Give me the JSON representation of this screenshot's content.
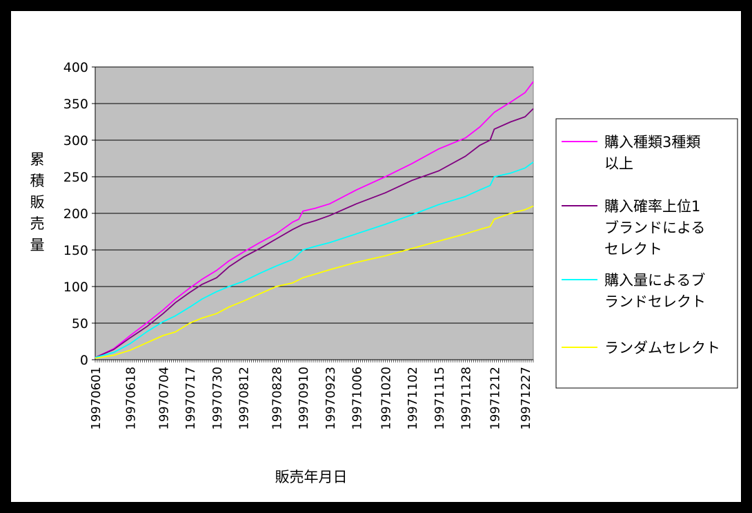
{
  "chart_data": {
    "type": "line",
    "title": "",
    "xlabel": "販売年月日",
    "ylabel": "累積販売量",
    "ylim": [
      0,
      400
    ],
    "y_ticks": [
      0,
      50,
      100,
      150,
      200,
      250,
      300,
      350,
      400
    ],
    "grid": "horizontal",
    "legend_position": "right",
    "plot_background": "#c0c0c0",
    "x_tick_labels": [
      "19970601",
      "19970618",
      "19970704",
      "19970717",
      "19970730",
      "19970812",
      "19970828",
      "19970910",
      "19970923",
      "19971006",
      "19971020",
      "19971102",
      "19971115",
      "19971128",
      "19971212",
      "19971227"
    ],
    "x_tick_dates": [
      "1997-06-01",
      "1997-06-18",
      "1997-07-04",
      "1997-07-17",
      "1997-07-30",
      "1997-08-12",
      "1997-08-28",
      "1997-09-10",
      "1997-09-23",
      "1997-10-06",
      "1997-10-20",
      "1997-11-02",
      "1997-11-15",
      "1997-11-28",
      "1997-12-12",
      "1997-12-27"
    ],
    "x_range": [
      "1997-06-01",
      "1997-12-31"
    ],
    "series": [
      {
        "name": "購入種類3種類以上",
        "legend_lines": [
          "購入種類3種類",
          "以上"
        ],
        "color": "#ff00ff",
        "x": [
          "1997-06-01",
          "1997-06-10",
          "1997-06-18",
          "1997-06-26",
          "1997-07-04",
          "1997-07-10",
          "1997-07-17",
          "1997-07-23",
          "1997-07-30",
          "1997-08-05",
          "1997-08-12",
          "1997-08-20",
          "1997-08-28",
          "1997-09-05",
          "1997-09-08",
          "1997-09-10",
          "1997-09-16",
          "1997-09-23",
          "1997-10-06",
          "1997-10-20",
          "1997-11-02",
          "1997-11-15",
          "1997-11-28",
          "1997-12-05",
          "1997-12-12",
          "1997-12-20",
          "1997-12-27",
          "1997-12-31"
        ],
        "y": [
          3,
          15,
          33,
          50,
          68,
          83,
          98,
          110,
          122,
          135,
          147,
          160,
          172,
          188,
          192,
          203,
          207,
          213,
          232,
          250,
          268,
          288,
          303,
          318,
          338,
          352,
          365,
          380
        ]
      },
      {
        "name": "購入確率上位1ブランドによるセレクト",
        "legend_lines": [
          "購入確率上位1",
          "ブランドによる",
          "セレクト"
        ],
        "color": "#800080",
        "x": [
          "1997-06-01",
          "1997-06-10",
          "1997-06-18",
          "1997-06-26",
          "1997-07-04",
          "1997-07-10",
          "1997-07-17",
          "1997-07-23",
          "1997-07-30",
          "1997-08-05",
          "1997-08-12",
          "1997-08-20",
          "1997-08-28",
          "1997-09-05",
          "1997-09-10",
          "1997-09-16",
          "1997-09-23",
          "1997-10-06",
          "1997-10-20",
          "1997-11-02",
          "1997-11-15",
          "1997-11-28",
          "1997-12-05",
          "1997-12-10",
          "1997-12-12",
          "1997-12-20",
          "1997-12-27",
          "1997-12-31"
        ],
        "y": [
          3,
          14,
          30,
          45,
          63,
          78,
          92,
          103,
          112,
          127,
          140,
          152,
          165,
          178,
          185,
          190,
          197,
          213,
          228,
          245,
          258,
          278,
          293,
          300,
          315,
          325,
          332,
          343
        ]
      },
      {
        "name": "購入量によるブランドセレクト",
        "legend_lines": [
          "購入量によるブ",
          "ランドセレクト"
        ],
        "color": "#00ffff",
        "x": [
          "1997-06-01",
          "1997-06-10",
          "1997-06-18",
          "1997-06-26",
          "1997-07-04",
          "1997-07-10",
          "1997-07-17",
          "1997-07-23",
          "1997-07-30",
          "1997-08-05",
          "1997-08-12",
          "1997-08-20",
          "1997-08-28",
          "1997-09-05",
          "1997-09-10",
          "1997-09-16",
          "1997-09-23",
          "1997-10-06",
          "1997-10-20",
          "1997-11-02",
          "1997-11-15",
          "1997-11-28",
          "1997-12-05",
          "1997-12-10",
          "1997-12-12",
          "1997-12-20",
          "1997-12-27",
          "1997-12-31"
        ],
        "y": [
          3,
          10,
          22,
          38,
          52,
          60,
          72,
          83,
          93,
          100,
          107,
          118,
          128,
          137,
          150,
          155,
          160,
          172,
          185,
          198,
          212,
          223,
          232,
          238,
          250,
          255,
          262,
          270
        ]
      },
      {
        "name": "ランダムセレクト",
        "legend_lines": [
          "ランダムセレクト"
        ],
        "color": "#ffff00",
        "x": [
          "1997-06-01",
          "1997-06-10",
          "1997-06-18",
          "1997-06-26",
          "1997-07-04",
          "1997-07-10",
          "1997-07-17",
          "1997-07-23",
          "1997-07-30",
          "1997-08-05",
          "1997-08-12",
          "1997-08-20",
          "1997-08-28",
          "1997-09-05",
          "1997-09-10",
          "1997-09-16",
          "1997-09-23",
          "1997-10-06",
          "1997-10-20",
          "1997-11-02",
          "1997-11-15",
          "1997-11-28",
          "1997-12-05",
          "1997-12-10",
          "1997-12-12",
          "1997-12-20",
          "1997-12-27",
          "1997-12-31"
        ],
        "y": [
          2,
          6,
          13,
          23,
          33,
          38,
          50,
          57,
          63,
          72,
          80,
          90,
          100,
          105,
          112,
          117,
          123,
          133,
          142,
          152,
          162,
          172,
          178,
          182,
          192,
          200,
          205,
          210
        ]
      }
    ]
  }
}
